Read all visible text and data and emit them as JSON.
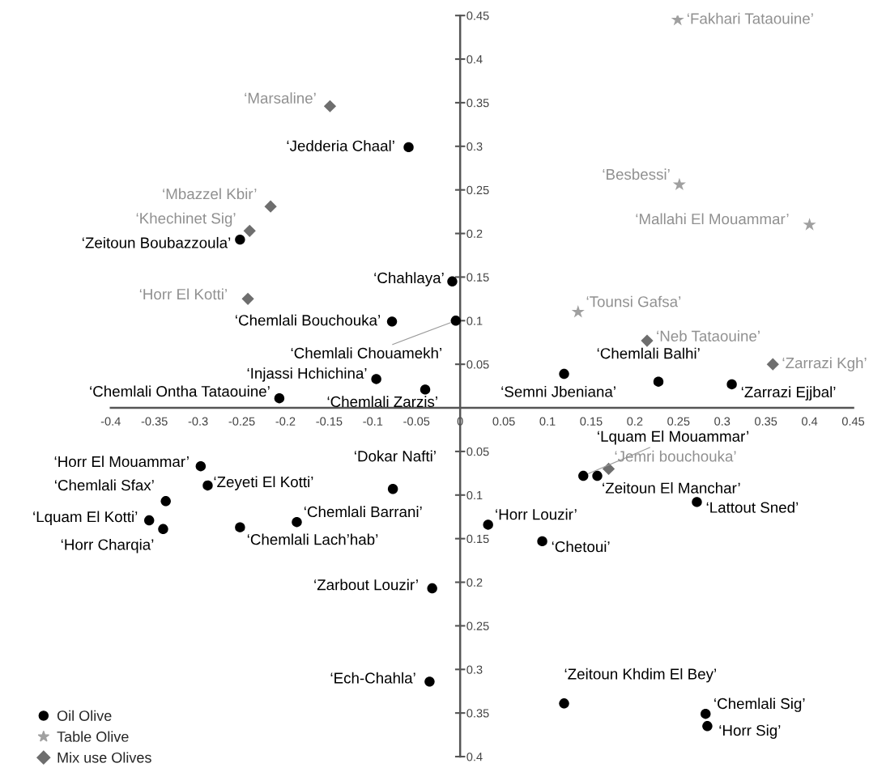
{
  "chart_data": {
    "type": "scatter",
    "xlim": [
      -0.4,
      0.45
    ],
    "ylim": [
      -0.4,
      0.45
    ],
    "xticks": [
      -0.4,
      -0.35,
      -0.3,
      -0.25,
      -0.2,
      -0.15,
      -0.1,
      -0.05,
      0,
      0.05,
      0.1,
      0.15,
      0.2,
      0.25,
      0.3,
      0.35,
      0.4,
      0.45
    ],
    "yticks": [
      {
        "value": -0.4,
        "label": "0.4"
      },
      {
        "value": -0.35,
        "label": "0.35"
      },
      {
        "value": -0.3,
        "label": "0.3"
      },
      {
        "value": -0.25,
        "label": "0.25"
      },
      {
        "value": -0.2,
        "label": "0.2"
      },
      {
        "value": -0.15,
        "label": "0.15"
      },
      {
        "value": -0.1,
        "label": "0.1"
      },
      {
        "value": -0.05,
        "label": "0.05"
      },
      0.05,
      0.1,
      0.15,
      0.2,
      0.25,
      0.3,
      0.35,
      0.4,
      0.45
    ],
    "grid": false,
    "legend": "bottom left",
    "series": [
      {
        "name": "Oil Olive",
        "color": "#000000",
        "marker": "circle",
        "x": [
          -0.059,
          -0.252,
          -0.009,
          -0.078,
          -0.005,
          -0.096,
          -0.04,
          -0.207,
          0.119,
          0.227,
          0.311,
          -0.297,
          -0.289,
          -0.337,
          -0.356,
          -0.34,
          -0.252,
          -0.187,
          -0.077,
          -0.032,
          -0.035,
          0.032,
          0.094,
          0.141,
          0.157,
          0.271,
          0.119,
          0.281,
          0.283
        ],
        "values": [
          0.299,
          0.193,
          0.145,
          0.099,
          0.1,
          0.033,
          0.021,
          0.011,
          0.039,
          0.03,
          0.027,
          -0.067,
          -0.089,
          -0.107,
          -0.129,
          -0.139,
          -0.137,
          -0.131,
          -0.093,
          -0.207,
          -0.314,
          -0.134,
          -0.153,
          -0.078,
          -0.078,
          -0.108,
          -0.339,
          -0.351,
          -0.365
        ]
      },
      {
        "name": "Table Olive",
        "color": "#a0a0a0",
        "marker": "star",
        "x": [
          0.249,
          0.251,
          0.4,
          0.135
        ],
        "values": [
          0.445,
          0.256,
          0.21,
          0.11
        ]
      },
      {
        "name": "Mix use Olives",
        "color": "#6e6e6e",
        "marker": "diamond",
        "x": [
          -0.149,
          -0.217,
          -0.241,
          -0.243,
          0.214,
          0.358,
          0.17
        ],
        "values": [
          0.346,
          0.231,
          0.203,
          0.125,
          0.077,
          0.05,
          -0.07
        ]
      }
    ],
    "annotations": [
      {
        "text": "‘Jedderia Chaal’",
        "x": -0.059,
        "y": 0.299
      },
      {
        "text": "‘Zeitoun Boubazzoula’",
        "x": -0.252,
        "y": 0.193
      },
      {
        "text": "‘Chahlaya’",
        "x": -0.009,
        "y": 0.145
      },
      {
        "text": "‘Chemlali Bouchouka’",
        "x": -0.078,
        "y": 0.099
      },
      {
        "text": "‘Chemlali Chouamekh’",
        "x": -0.005,
        "y": 0.1
      },
      {
        "text": "‘Injassi Hchichina’",
        "x": -0.096,
        "y": 0.033
      },
      {
        "text": "‘Chemlali Zarzis’",
        "x": -0.04,
        "y": 0.021
      },
      {
        "text": "‘Chemlali Ontha Tataouine’",
        "x": -0.207,
        "y": 0.011
      },
      {
        "text": "‘Semni Jbeniana’",
        "x": 0.119,
        "y": 0.039
      },
      {
        "text": "‘Chemlali Balhi’",
        "x": 0.227,
        "y": 0.03
      },
      {
        "text": "‘Zarrazi Ejjbal’",
        "x": 0.311,
        "y": 0.027
      },
      {
        "text": "‘Horr El Mouammar’",
        "x": -0.297,
        "y": -0.067
      },
      {
        "text": "‘Zeyeti El Kotti’",
        "x": -0.289,
        "y": -0.089
      },
      {
        "text": "‘Chemlali Sfax’",
        "x": -0.337,
        "y": -0.107
      },
      {
        "text": "‘Lquam El Kotti’",
        "x": -0.356,
        "y": -0.129
      },
      {
        "text": "‘Horr Charqia’",
        "x": -0.34,
        "y": -0.139
      },
      {
        "text": "‘Chemlali Lach’hab’",
        "x": -0.252,
        "y": -0.137
      },
      {
        "text": "‘Chemlali Barrani’",
        "x": -0.187,
        "y": -0.131
      },
      {
        "text": "‘Dokar Nafti’",
        "x": -0.077,
        "y": -0.093
      },
      {
        "text": "‘Zarbout Louzir’",
        "x": -0.032,
        "y": -0.207
      },
      {
        "text": "‘Ech-Chahla’",
        "x": -0.035,
        "y": -0.314
      },
      {
        "text": "‘Horr Louzir’",
        "x": 0.032,
        "y": -0.134
      },
      {
        "text": "‘Chetoui’",
        "x": 0.094,
        "y": -0.153
      },
      {
        "text": "‘Lquam El Mouammar’",
        "x": 0.141,
        "y": -0.078
      },
      {
        "text": "‘Zeitoun El Manchar’",
        "x": 0.157,
        "y": -0.078
      },
      {
        "text": "‘Lattout Sned’",
        "x": 0.271,
        "y": -0.108
      },
      {
        "text": "‘Zeitoun Khdim El Bey’",
        "x": 0.119,
        "y": -0.339
      },
      {
        "text": "‘Chemlali Sig’",
        "x": 0.281,
        "y": -0.351
      },
      {
        "text": "‘Horr Sig’",
        "x": 0.283,
        "y": -0.365
      },
      {
        "text": "‘Fakhari Tataouine’",
        "x": 0.249,
        "y": 0.445
      },
      {
        "text": "‘Besbessi’",
        "x": 0.251,
        "y": 0.256
      },
      {
        "text": "‘Mallahi El Mouammar’",
        "x": 0.4,
        "y": 0.21
      },
      {
        "text": "‘Tounsi Gafsa’",
        "x": 0.135,
        "y": 0.11
      },
      {
        "text": "‘Marsaline’",
        "x": -0.149,
        "y": 0.346
      },
      {
        "text": "‘Mbazzel Kbir’",
        "x": -0.217,
        "y": 0.231
      },
      {
        "text": "‘Khechinet Sig’",
        "x": -0.241,
        "y": 0.203
      },
      {
        "text": "‘Horr El Kotti’",
        "x": -0.243,
        "y": 0.125
      },
      {
        "text": "‘Neb Tataouine’",
        "x": 0.214,
        "y": 0.077
      },
      {
        "text": "‘Zarrazi Kgh’",
        "x": 0.358,
        "y": 0.05
      },
      {
        "text": "‘Jemri bouchouka’",
        "x": 0.17,
        "y": -0.07
      }
    ]
  }
}
